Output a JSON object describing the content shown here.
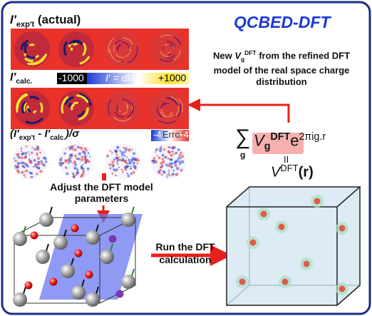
{
  "title": "QCBED-DFT",
  "experimental": {
    "symbol": "I′",
    "subscript": "exp't",
    "note": "(actual)"
  },
  "calculated": {
    "symbol": "I′",
    "subscript": "calc.",
    "scale": {
      "low": "-1000",
      "name": "I′ = dI/dθ",
      "high": "+1000"
    }
  },
  "difference": {
    "parts": [
      "(I′",
      "exp't",
      " - I′",
      "calc.",
      ")/σ"
    ],
    "scale": {
      "low": "-4",
      "name": "Error",
      "high": "+4"
    }
  },
  "update_note": {
    "prefix": "New",
    "symbol": "V",
    "subscript": "g",
    "superscript": "DFT",
    "rest": "from the refined DFT model of the real space charge distribution"
  },
  "formula": {
    "sum": "∑",
    "sum_index": "g",
    "symbol": "V",
    "subscript": "g",
    "superscript": "DFT",
    "base": "e",
    "exponent": "2πig.r",
    "equals": "II",
    "result": "V",
    "result_superscript": "DFT",
    "result_argument": "(r)"
  },
  "steps": {
    "adjust": "Adjust the DFT model parameters",
    "run": "Run the DFT calculation"
  }
}
